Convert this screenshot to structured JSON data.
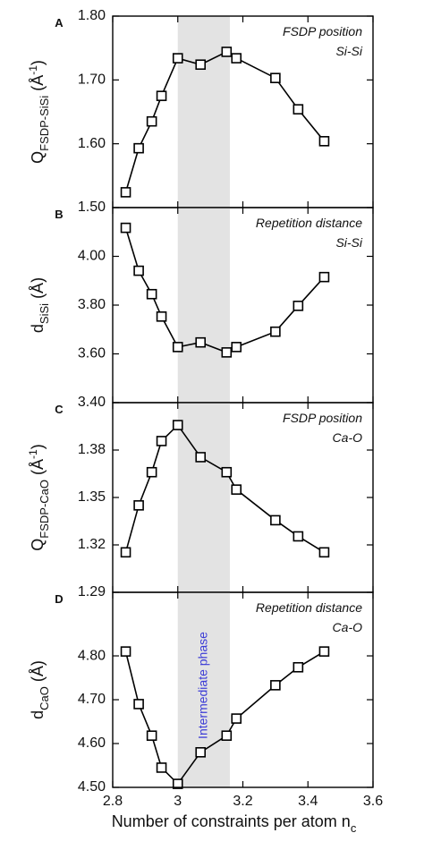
{
  "chart_data": [
    {
      "type": "line",
      "panel": "A",
      "annotation": [
        "FSDP position",
        "Si-Si"
      ],
      "ylabel": {
        "base": "Q",
        "sub": "FSDP-SiSi",
        "unit": " (Å",
        "sup": "-1",
        "close": ")"
      },
      "x": [
        2.84,
        2.88,
        2.92,
        2.95,
        3.0,
        3.07,
        3.15,
        3.18,
        3.3,
        3.37,
        3.45
      ],
      "values": [
        1.524,
        1.593,
        1.635,
        1.675,
        1.734,
        1.724,
        1.744,
        1.734,
        1.703,
        1.654,
        1.604
      ],
      "color": "#000000",
      "xlim": [
        2.8,
        3.6
      ],
      "ylim": [
        1.5,
        1.8
      ],
      "yticks": [
        {
          "value": 1.5,
          "label": "1.50"
        },
        {
          "value": 1.6,
          "label": "1.60"
        },
        {
          "value": 1.7,
          "label": "1.70"
        },
        {
          "value": 1.8,
          "label": "1.80"
        }
      ],
      "shaded_region": [
        3.0,
        3.16
      ],
      "shade_color": "#e3e3e3"
    },
    {
      "type": "line",
      "panel": "B",
      "annotation": [
        "Repetition distance",
        "Si-Si"
      ],
      "ylabel": {
        "base": "d",
        "sub": "SiSi",
        "unit": " (Å)"
      },
      "x": [
        2.84,
        2.88,
        2.92,
        2.95,
        3.0,
        3.07,
        3.15,
        3.18,
        3.3,
        3.37,
        3.45
      ],
      "values": [
        4.117,
        3.941,
        3.845,
        3.753,
        3.628,
        3.647,
        3.606,
        3.628,
        3.691,
        3.797,
        3.915
      ],
      "color": "#000000",
      "xlim": [
        2.8,
        3.6
      ],
      "ylim": [
        3.4,
        4.2
      ],
      "yticks": [
        {
          "value": 3.4,
          "label": "3.40"
        },
        {
          "value": 3.6,
          "label": "3.60"
        },
        {
          "value": 3.8,
          "label": "3.80"
        },
        {
          "value": 4.0,
          "label": "4.00"
        }
      ],
      "shaded_region": [
        3.0,
        3.16
      ],
      "shade_color": "#e3e3e3"
    },
    {
      "type": "line",
      "panel": "C",
      "annotation": [
        "FSDP position",
        "Ca-O"
      ],
      "ylabel": {
        "base": "Q",
        "sub": "FSDP-CaO",
        "unit": " (Å",
        "sup": "-1",
        "close": ")"
      },
      "x": [
        2.84,
        2.88,
        2.92,
        2.95,
        3.0,
        3.07,
        3.15,
        3.18,
        3.3,
        3.37,
        3.45
      ],
      "values": [
        1.3153,
        1.345,
        1.366,
        1.3857,
        1.3958,
        1.3755,
        1.366,
        1.355,
        1.3356,
        1.3254,
        1.3153
      ],
      "color": "#000000",
      "xlim": [
        2.8,
        3.6
      ],
      "ylim": [
        1.29,
        1.41
      ],
      "yticks": [
        1.29,
        1.32,
        1.35,
        1.38
      ],
      "shaded_region": [
        3.0,
        3.16
      ],
      "shade_color": "#e3e3e3"
    },
    {
      "type": "line",
      "panel": "D",
      "annotation": [
        "Repetition distance",
        "Ca-O"
      ],
      "ylabel": {
        "base": "d",
        "sub": "CaO",
        "unit": " (Å)"
      },
      "region_label": "Intermediate phase",
      "region_label_color": "#3b3bd6",
      "x": [
        2.84,
        2.88,
        2.92,
        2.95,
        3.0,
        3.07,
        3.15,
        3.18,
        3.3,
        3.37,
        3.45
      ],
      "values": [
        4.81,
        4.69,
        4.618,
        4.545,
        4.508,
        4.58,
        4.618,
        4.657,
        4.733,
        4.774,
        4.81
      ],
      "color": "#000000",
      "xlim": [
        2.8,
        3.6
      ],
      "ylim": [
        4.5,
        4.945
      ],
      "yticks": [
        {
          "value": 4.5,
          "label": "4.50"
        },
        {
          "value": 4.6,
          "label": "4.60"
        },
        {
          "value": 4.7,
          "label": "4.70"
        },
        {
          "value": 4.8,
          "label": "4.80"
        }
      ],
      "xticks": [
        2.8,
        3,
        3.2,
        3.4,
        3.6
      ],
      "xlabel": {
        "text": "Number of constraints per atom n",
        "sub": "c"
      },
      "shaded_region": [
        3.0,
        3.16
      ],
      "shade_color": "#e3e3e3"
    }
  ]
}
